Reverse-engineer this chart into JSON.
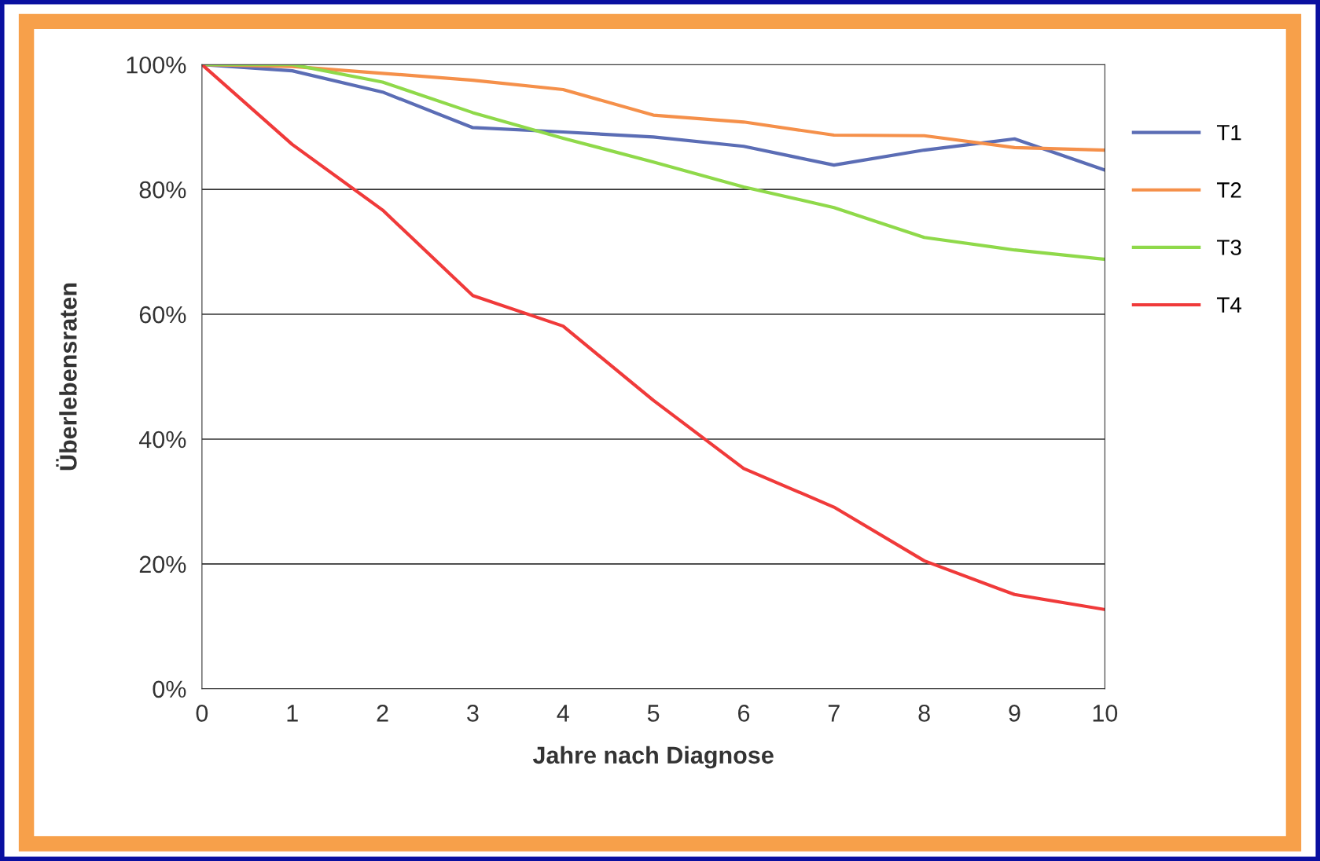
{
  "chart_data": {
    "type": "line",
    "xlabel": "Jahre nach Diagnose",
    "ylabel": "Überlebensraten",
    "x": [
      0,
      1,
      2,
      3,
      4,
      5,
      6,
      7,
      8,
      9,
      10
    ],
    "series": [
      {
        "name": "T1",
        "color": "#5b6db5",
        "values": [
          100,
          99.0,
          95.6,
          89.9,
          89.2,
          88.4,
          86.9,
          83.9,
          86.3,
          88.1,
          83.1
        ]
      },
      {
        "name": "T2",
        "color": "#f5904a",
        "values": [
          100,
          99.7,
          98.6,
          97.5,
          96.0,
          91.9,
          90.8,
          88.7,
          88.6,
          86.7,
          86.3
        ]
      },
      {
        "name": "T3",
        "color": "#8fd94a",
        "values": [
          100,
          100,
          97.2,
          92.3,
          88.2,
          84.4,
          80.4,
          77.1,
          72.3,
          70.3,
          68.8
        ]
      },
      {
        "name": "T4",
        "color": "#f03a3a",
        "values": [
          100,
          87.2,
          76.7,
          63.0,
          58.1,
          46.2,
          35.3,
          29.1,
          20.5,
          15.1,
          12.7
        ]
      }
    ],
    "xlim": [
      0,
      10
    ],
    "xticks": [
      0,
      1,
      2,
      3,
      4,
      5,
      6,
      7,
      8,
      9,
      10
    ],
    "ylim": [
      0,
      100
    ],
    "yticks": [
      {
        "value": 0,
        "label": "0%"
      },
      {
        "value": 20,
        "label": "20%"
      },
      {
        "value": 40,
        "label": "40%"
      },
      {
        "value": 60,
        "label": "60%"
      },
      {
        "value": 80,
        "label": "80%"
      },
      {
        "value": 100,
        "label": "100%"
      }
    ],
    "grid": "y",
    "legend": "right",
    "marker": "none",
    "line_style": "solid"
  }
}
